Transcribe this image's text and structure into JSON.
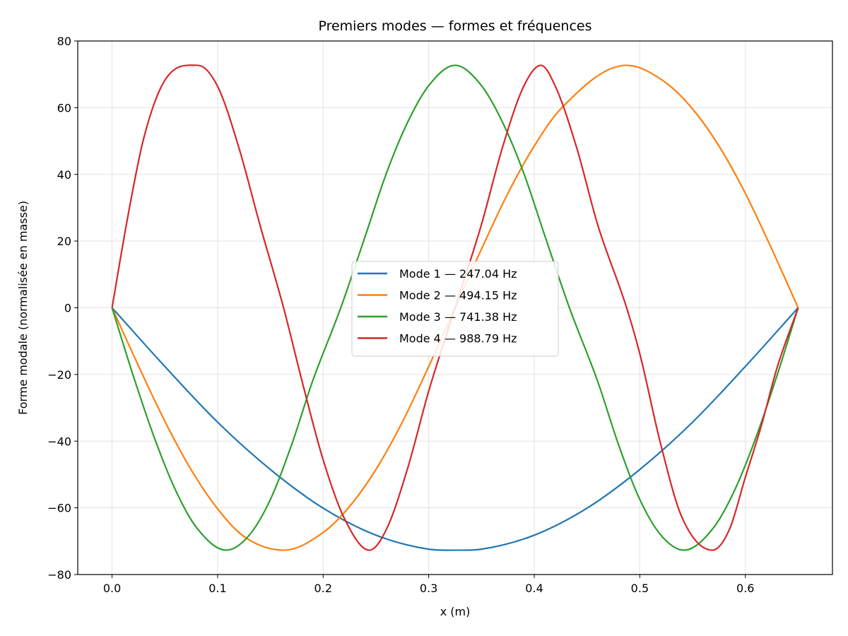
{
  "chart_data": {
    "type": "line",
    "title": "Premiers modes — formes et fréquences",
    "xlabel": "x (m)",
    "ylabel": "Forme modale (normalisée en masse)",
    "xlim": [
      -0.0325,
      0.6825
    ],
    "ylim": [
      -80,
      80
    ],
    "x_ticks": [
      0.0,
      0.1,
      0.2,
      0.3,
      0.4,
      0.5,
      0.6
    ],
    "x_tick_labels": [
      "0.0",
      "0.1",
      "0.2",
      "0.3",
      "0.4",
      "0.5",
      "0.6"
    ],
    "y_ticks": [
      -80,
      -60,
      -40,
      -20,
      0,
      20,
      40,
      60,
      80
    ],
    "y_tick_labels": [
      "−80",
      "−60",
      "−40",
      "−20",
      "0",
      "20",
      "40",
      "60",
      "80"
    ],
    "grid": true,
    "legend_position": "center",
    "series": [
      {
        "name": "Mode 1 — 247.04 Hz",
        "color": "#1f77b4",
        "x": [
          0.0,
          0.05,
          0.1,
          0.15,
          0.2,
          0.25,
          0.3,
          0.325,
          0.35,
          0.4,
          0.45,
          0.5,
          0.55,
          0.6,
          0.65
        ],
        "y": [
          0.0,
          -17.6,
          -34.3,
          -48.5,
          -60.1,
          -68.2,
          -72.4,
          -72.7,
          -72.4,
          -68.2,
          -60.1,
          -48.5,
          -34.3,
          -17.6,
          0.0
        ]
      },
      {
        "name": "Mode 2 — 494.15 Hz",
        "color": "#ff7f0e",
        "x": [
          0.0,
          0.025,
          0.05,
          0.075,
          0.1,
          0.125,
          0.1625,
          0.2,
          0.225,
          0.25,
          0.275,
          0.3,
          0.325,
          0.35,
          0.375,
          0.4,
          0.425,
          0.4875,
          0.525,
          0.55,
          0.575,
          0.6,
          0.625,
          0.65
        ],
        "y": [
          0.0,
          -17.4,
          -34.0,
          -48.6,
          -60.3,
          -68.6,
          -72.7,
          -67.4,
          -59.6,
          -48.5,
          -34.3,
          -17.6,
          0.0,
          17.6,
          34.3,
          48.5,
          59.6,
          72.7,
          67.4,
          59.6,
          48.5,
          34.3,
          17.6,
          0.0
        ]
      },
      {
        "name": "Mode 3 — 741.38 Hz",
        "color": "#2ca02c",
        "x": [
          0.0,
          0.02,
          0.04,
          0.06,
          0.08,
          0.1083,
          0.13,
          0.15,
          0.17,
          0.19,
          0.2167,
          0.24,
          0.26,
          0.28,
          0.3,
          0.325,
          0.35,
          0.37,
          0.39,
          0.41,
          0.4333,
          0.46,
          0.48,
          0.5,
          0.52,
          0.5417,
          0.57,
          0.59,
          0.61,
          0.63,
          0.65
        ],
        "y": [
          0.0,
          -20.3,
          -38.9,
          -54.6,
          -65.9,
          -72.7,
          -68.2,
          -57.5,
          -41.2,
          -22.0,
          0.0,
          21.6,
          40.4,
          55.6,
          66.6,
          72.7,
          66.6,
          55.6,
          40.4,
          21.6,
          0.0,
          -22.0,
          -41.2,
          -57.5,
          -68.2,
          -72.7,
          -65.9,
          -54.6,
          -38.9,
          -20.3,
          0.0
        ]
      },
      {
        "name": "Mode 4 — 988.79 Hz",
        "color": "#d62728",
        "x": [
          0.0,
          0.015,
          0.03,
          0.05,
          0.0813,
          0.1,
          0.12,
          0.14,
          0.1625,
          0.18,
          0.2,
          0.22,
          0.2438,
          0.26,
          0.28,
          0.3,
          0.325,
          0.35,
          0.37,
          0.39,
          0.4063,
          0.42,
          0.44,
          0.46,
          0.4875,
          0.5,
          0.52,
          0.54,
          0.5688,
          0.585,
          0.6,
          0.615,
          0.63,
          0.65
        ],
        "y": [
          0.0,
          27.4,
          50.8,
          68.2,
          72.7,
          66.4,
          48.2,
          25.0,
          0.0,
          -22.0,
          -45.6,
          -63.1,
          -72.7,
          -66.4,
          -48.2,
          -25.0,
          0.0,
          25.0,
          48.2,
          66.4,
          72.7,
          66.4,
          48.2,
          25.0,
          0.0,
          -13.8,
          -41.2,
          -62.9,
          -72.7,
          -66.4,
          -50.8,
          -35.5,
          -18.0,
          0.0
        ]
      }
    ]
  }
}
